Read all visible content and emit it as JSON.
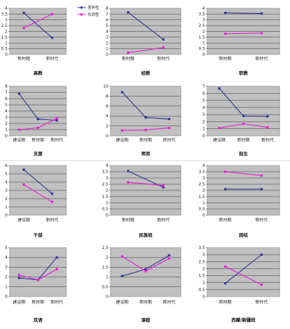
{
  "legend": [
    {
      "name": "差异性",
      "color": "#2b2f8f"
    },
    {
      "name": "共同性",
      "color": "#e619d6"
    }
  ],
  "chart_data": [
    {
      "type": "line",
      "title": "高教",
      "categories": [
        "新时期",
        "新时代"
      ],
      "ylim": [
        0,
        4
      ],
      "ystep": 0.5,
      "series": [
        {
          "name": "差异性",
          "values": [
            3.6,
            1.45
          ]
        },
        {
          "name": "共同性",
          "values": [
            2.3,
            3.5
          ]
        }
      ]
    },
    {
      "type": "line",
      "title": "经教",
      "categories": [
        "新时期",
        "新时代"
      ],
      "ylim": [
        0,
        8
      ],
      "ystep": 1,
      "series": [
        {
          "name": "差异性",
          "values": [
            7.3,
            2.6
          ]
        },
        {
          "name": "共同性",
          "values": [
            0.3,
            1.2
          ]
        }
      ]
    },
    {
      "type": "line",
      "title": "职教",
      "categories": [
        "新时期",
        "新时代"
      ],
      "ylim": [
        0,
        4
      ],
      "ystep": 0.5,
      "series": [
        {
          "name": "差异性",
          "values": [
            3.6,
            3.55
          ]
        },
        {
          "name": "共同性",
          "values": [
            1.8,
            1.85
          ]
        }
      ]
    },
    {
      "type": "line",
      "title": "支援",
      "categories": [
        "建设期",
        "新时期",
        "新时代"
      ],
      "ylim": [
        0,
        8
      ],
      "ystep": 1,
      "series": [
        {
          "name": "差异性",
          "values": [
            6.8,
            2.7,
            2.5
          ]
        },
        {
          "name": "共同性",
          "values": [
            1.0,
            1.3,
            2.8
          ]
        }
      ]
    },
    {
      "type": "line",
      "title": "师资",
      "categories": [
        "建设期",
        "新时期",
        "新时代"
      ],
      "ylim": [
        0,
        10
      ],
      "ystep": 2,
      "series": [
        {
          "name": "差异性",
          "values": [
            8.8,
            3.7,
            3.4
          ]
        },
        {
          "name": "共同性",
          "values": [
            1.1,
            1.2,
            1.6
          ]
        }
      ]
    },
    {
      "type": "line",
      "title": "招生",
      "categories": [
        "建设期",
        "新时期",
        "新时代"
      ],
      "ylim": [
        0,
        7
      ],
      "ystep": 1,
      "series": [
        {
          "name": "差异性",
          "values": [
            6.7,
            2.8,
            2.75
          ]
        },
        {
          "name": "共同性",
          "values": [
            1.1,
            1.7,
            1.2
          ]
        }
      ]
    },
    {
      "type": "line",
      "title": "干部",
      "categories": [
        "建设期",
        "新时代"
      ],
      "ylim": [
        0,
        6
      ],
      "ystep": 1,
      "series": [
        {
          "name": "差异性",
          "values": [
            5.5,
            2.6
          ]
        },
        {
          "name": "共同性",
          "values": [
            3.7,
            1.6
          ]
        }
      ]
    },
    {
      "type": "line",
      "title": "民族班",
      "categories": [
        "新时期",
        "新时代"
      ],
      "ylim": [
        0,
        4
      ],
      "ystep": 0.5,
      "series": [
        {
          "name": "差异性",
          "values": [
            3.55,
            2.25
          ]
        },
        {
          "name": "共同性",
          "values": [
            2.65,
            2.4
          ]
        }
      ]
    },
    {
      "type": "line",
      "title": "团结",
      "categories": [
        "新时期",
        "新时代"
      ],
      "ylim": [
        0,
        4
      ],
      "ystep": 0.5,
      "series": [
        {
          "name": "差异性",
          "values": [
            2.1,
            2.1
          ]
        },
        {
          "name": "共同性",
          "values": [
            3.5,
            3.2
          ]
        }
      ]
    },
    {
      "type": "line",
      "title": "双语",
      "categories": [
        "建设期",
        "新时期",
        "新时代"
      ],
      "ylim": [
        0,
        5
      ],
      "ystep": 1,
      "series": [
        {
          "name": "差异性",
          "values": [
            1.9,
            1.7,
            4.0
          ]
        },
        {
          "name": "共同性",
          "values": [
            2.2,
            1.7,
            2.8
          ]
        }
      ]
    },
    {
      "type": "line",
      "title": "课程",
      "categories": [
        "建设期",
        "新时期",
        "新时代"
      ],
      "ylim": [
        0,
        2.5
      ],
      "ystep": 0.5,
      "series": [
        {
          "name": "差异性",
          "values": [
            1.05,
            1.4,
            2.1
          ]
        },
        {
          "name": "共同性",
          "values": [
            2.05,
            1.3,
            1.95
          ]
        }
      ]
    },
    {
      "type": "line",
      "title": "西藏/新疆班",
      "categories": [
        "新时期",
        "新时代"
      ],
      "ylim": [
        0,
        3.5
      ],
      "ystep": 0.5,
      "series": [
        {
          "name": "差异性",
          "values": [
            0.95,
            3.0
          ]
        },
        {
          "name": "共同性",
          "values": [
            2.15,
            0.85
          ]
        }
      ]
    }
  ]
}
